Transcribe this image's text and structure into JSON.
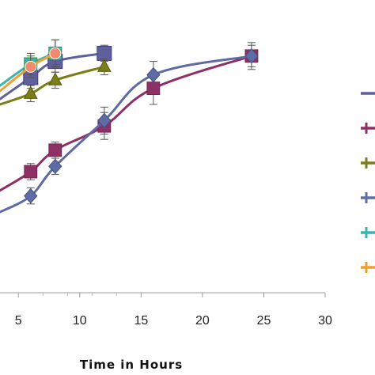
{
  "chart_data": {
    "type": "line",
    "xlabel": "Time in Hours",
    "ylabel": "",
    "title": "",
    "xlim": [
      3.5,
      30
    ],
    "ylim": [
      0,
      100
    ],
    "xticks": [
      "5",
      "10",
      "15",
      "20",
      "25",
      "30"
    ],
    "xtick_values": [
      5,
      10,
      15,
      20,
      25,
      30
    ],
    "grid": false,
    "legend_placement": "right",
    "series": [
      {
        "color": "#5f5f9e",
        "marker": "none",
        "x": [
          3.5,
          6,
          8,
          12
        ],
        "y": [
          72,
          80,
          86,
          89
        ],
        "err": [
          0,
          4,
          4,
          3
        ]
      },
      {
        "color": "#8e2f66",
        "marker": "square",
        "x": [
          3.5,
          6,
          8,
          12,
          16,
          24
        ],
        "y": [
          38,
          45,
          53,
          62,
          76,
          88
        ],
        "err": [
          0,
          3,
          3,
          5,
          6,
          5
        ]
      },
      {
        "color": "#7b7d18",
        "marker": "triangle",
        "x": [
          3.5,
          6,
          8,
          12
        ],
        "y": [
          70,
          74,
          79,
          84
        ],
        "err": [
          0,
          3,
          3,
          3
        ]
      },
      {
        "color": "#5f6ba5",
        "marker": "diamond",
        "x": [
          3.5,
          6,
          8,
          12,
          16,
          24
        ],
        "y": [
          30,
          36,
          47,
          64,
          81,
          88
        ],
        "err": [
          0,
          3,
          3,
          5,
          5,
          4
        ]
      },
      {
        "color": "#39b5ad",
        "marker": "x",
        "x": [
          3.5,
          6,
          8
        ],
        "y": [
          77,
          85,
          89
        ],
        "err": [
          0,
          4,
          5
        ]
      },
      {
        "color": "#f0a030",
        "marker": "circle",
        "x": [
          3.5,
          6,
          8
        ],
        "y": [
          75,
          84,
          89
        ],
        "err": [
          0,
          4,
          5
        ]
      }
    ]
  }
}
